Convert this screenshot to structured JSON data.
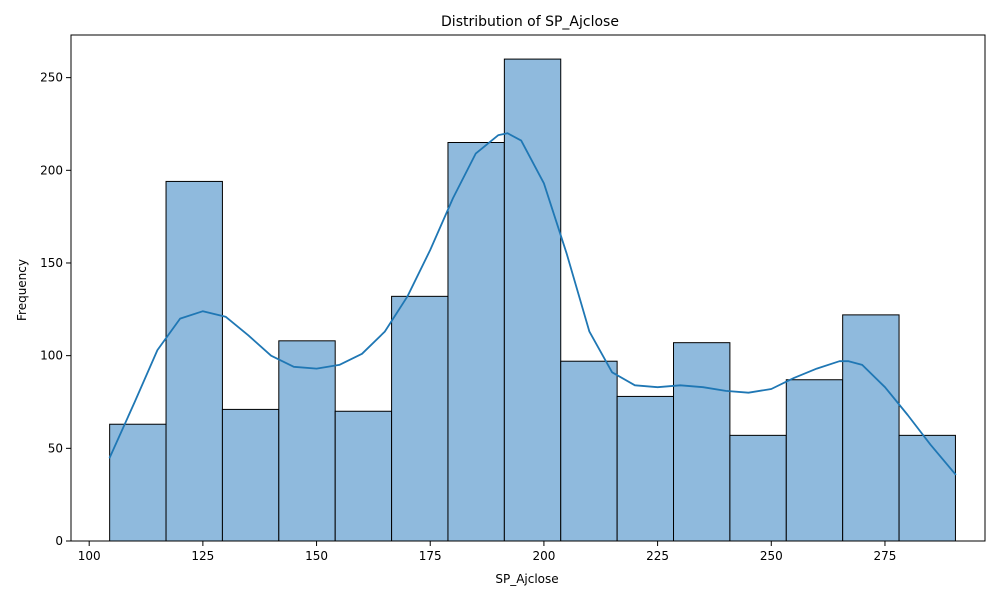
{
  "chart_data": {
    "type": "bar",
    "subtype": "histogram_with_kde",
    "title": "Distribution of SP_Ajclose",
    "xlabel": "SP_Ajclose",
    "ylabel": "Frequency",
    "xlim": [
      96,
      297
    ],
    "ylim": [
      0,
      273
    ],
    "xticks": [
      100,
      125,
      150,
      175,
      200,
      225,
      250,
      275
    ],
    "yticks": [
      0,
      50,
      100,
      150,
      200,
      250
    ],
    "bin_edges": [
      104.5,
      116.9,
      129.3,
      141.7,
      154.1,
      166.5,
      178.9,
      191.3,
      203.7,
      216.1,
      228.5,
      240.9,
      253.3,
      265.7,
      278.1,
      290.5
    ],
    "values": [
      63,
      194,
      71,
      108,
      70,
      132,
      215,
      260,
      97,
      78,
      107,
      57,
      87,
      122,
      57
    ],
    "kde": {
      "x": [
        104.5,
        110,
        115,
        120,
        125,
        130,
        135,
        140,
        145,
        150,
        155,
        160,
        165,
        170,
        175,
        180,
        185,
        190,
        192,
        195,
        200,
        205,
        210,
        215,
        220,
        225,
        230,
        235,
        240,
        245,
        250,
        255,
        260,
        265,
        267,
        270,
        275,
        280,
        285,
        290.5
      ],
      "y": [
        45,
        75,
        103,
        120,
        124,
        121,
        111,
        100,
        94,
        93,
        95,
        101,
        113,
        132,
        157,
        185,
        209,
        219,
        220,
        216,
        193,
        155,
        113,
        91,
        84,
        83,
        84,
        83,
        81,
        80,
        82,
        88,
        93,
        97,
        97,
        95,
        83,
        68,
        52,
        36
      ]
    },
    "colors": {
      "bar_fill": "#8fbadd",
      "bar_edge": "#000000",
      "kde_line": "#1f77b4"
    },
    "grid": false,
    "legend": "none"
  }
}
